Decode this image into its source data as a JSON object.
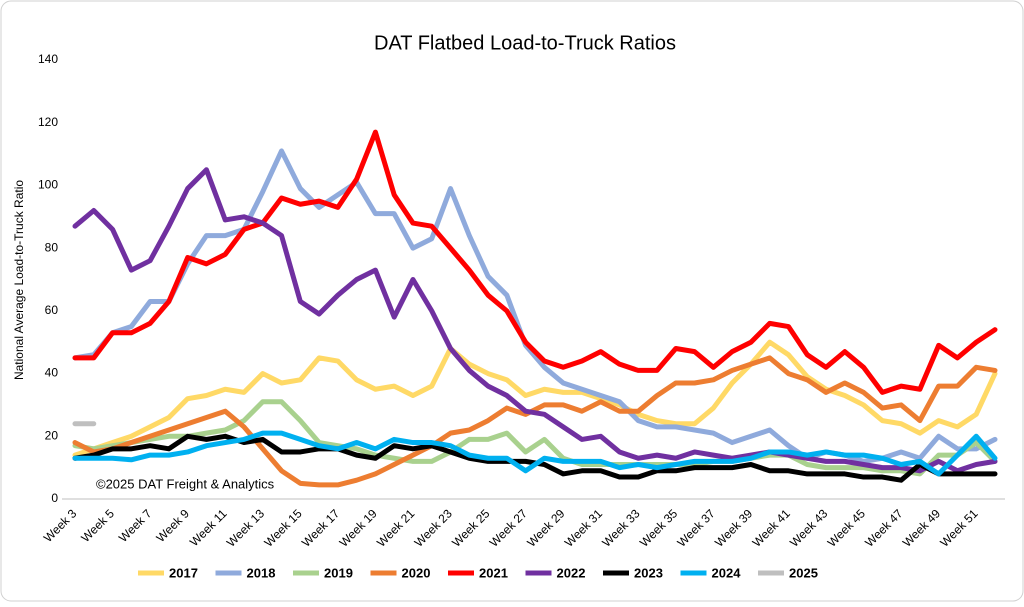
{
  "chart_data": {
    "type": "line",
    "title": "DAT Flatbed Load-to-Truck Ratios",
    "y_label": "National Average Load-to-Truck Ratio",
    "annotation": "©2025 DAT Freight & Analytics",
    "categories": [
      "Week 3",
      null,
      "Week 5",
      null,
      "Week 7",
      null,
      "Week 9",
      null,
      "Week 11",
      null,
      "Week 13",
      null,
      "Week 15",
      null,
      "Week 17",
      null,
      "Week 19",
      null,
      "Week 21",
      null,
      "Week 23",
      null,
      "Week 25",
      null,
      "Week 27",
      null,
      "Week 29",
      null,
      "Week 31",
      null,
      "Week 33",
      null,
      "Week 35",
      null,
      "Week 37",
      null,
      "Week 39",
      null,
      "Week 41",
      null,
      "Week 43",
      null,
      "Week 45",
      null,
      "Week 47",
      null,
      "Week 49",
      null,
      "Week 51",
      null
    ],
    "ylim": [
      0,
      140
    ],
    "yticks": [
      0,
      20,
      40,
      60,
      80,
      100,
      120,
      140
    ],
    "grid": false,
    "legend": "bottom",
    "series": [
      {
        "name": "2017",
        "color": "#ffd966",
        "values": [
          14,
          16,
          18,
          20,
          23,
          26,
          32,
          33,
          35,
          34,
          40,
          37,
          38,
          45,
          44,
          38,
          35,
          36,
          33,
          36,
          48,
          43,
          40,
          38,
          33,
          35,
          34,
          34,
          32,
          30,
          27,
          25,
          24,
          24,
          29,
          37,
          43,
          50,
          46,
          39,
          35,
          33,
          30,
          25,
          24,
          21,
          25,
          23,
          27,
          40
        ]
      },
      {
        "name": "2018",
        "color": "#8faadc",
        "values": [
          45,
          46,
          53,
          55,
          63,
          63,
          75,
          84,
          84,
          86,
          98,
          111,
          99,
          93,
          97,
          101,
          91,
          91,
          80,
          83,
          99,
          84,
          71,
          65,
          49,
          42,
          37,
          35,
          33,
          31,
          25,
          23,
          23,
          22,
          21,
          18,
          20,
          22,
          17,
          13,
          15,
          14,
          12,
          13,
          15,
          13,
          20,
          16,
          16,
          19
        ]
      },
      {
        "name": "2019",
        "color": "#a9d18e",
        "values": [
          17,
          16,
          17,
          18,
          19,
          20,
          20,
          21,
          22,
          25,
          31,
          31,
          25,
          18,
          17,
          16,
          14,
          13,
          12,
          12,
          15,
          19,
          19,
          21,
          15,
          19,
          13,
          11,
          11,
          11,
          11,
          11,
          11,
          11,
          12,
          12,
          13,
          14,
          14,
          11,
          10,
          10,
          10,
          9,
          9,
          8,
          14,
          14,
          18,
          12
        ]
      },
      {
        "name": "2020",
        "color": "#ed7d31",
        "values": [
          18,
          15,
          16,
          18,
          20,
          22,
          24,
          26,
          28,
          23,
          16,
          9,
          5,
          4.5,
          4.5,
          6,
          8,
          11,
          14,
          17,
          21,
          22,
          25,
          29,
          27,
          30,
          30,
          28,
          31,
          28,
          28,
          33,
          37,
          37,
          38,
          41,
          43,
          45,
          40,
          38,
          34,
          37,
          34,
          29,
          30,
          25,
          36,
          36,
          42,
          41
        ]
      },
      {
        "name": "2021",
        "color": "#ff0000",
        "values": [
          45,
          45,
          53,
          53,
          56,
          63,
          77,
          75,
          78,
          86,
          88,
          96,
          94,
          95,
          93,
          102,
          117,
          97,
          88,
          87,
          80,
          73,
          65,
          60,
          50,
          44,
          42,
          44,
          47,
          43,
          41,
          41,
          48,
          47,
          42,
          47,
          50,
          56,
          55,
          46,
          42,
          47,
          42,
          34,
          36,
          35,
          49,
          45,
          50,
          54
        ]
      },
      {
        "name": "2022",
        "color": "#7030a0",
        "values": [
          87,
          92,
          86,
          73,
          76,
          87,
          99,
          105,
          89,
          90,
          88,
          84,
          63,
          59,
          65,
          70,
          73,
          58,
          70,
          60,
          48,
          41,
          36,
          33,
          28,
          27,
          23,
          19,
          20,
          15,
          13,
          14,
          13,
          15,
          14,
          13,
          14,
          15,
          14,
          13,
          12,
          12,
          11,
          10,
          10,
          9,
          12,
          9,
          11,
          12
        ]
      },
      {
        "name": "2023",
        "color": "#000000",
        "values": [
          13,
          14,
          16,
          16,
          17,
          16,
          20,
          19,
          20,
          18,
          19,
          15,
          15,
          16,
          16,
          14,
          13,
          17,
          16,
          17,
          15,
          13,
          12,
          12,
          12,
          11,
          8,
          9,
          9,
          7,
          7,
          9,
          9,
          10,
          10,
          10,
          11,
          9,
          9,
          8,
          8,
          8,
          7,
          7,
          6,
          11,
          8,
          8,
          8,
          8
        ]
      },
      {
        "name": "2024",
        "color": "#00b0f0",
        "values": [
          13,
          13,
          13,
          12.5,
          14,
          14,
          15,
          17,
          18,
          19,
          21,
          21,
          19,
          17,
          16,
          18,
          16,
          19,
          18,
          18,
          17,
          14,
          13,
          13,
          9,
          13,
          12,
          12,
          12,
          10,
          11,
          10,
          11,
          12,
          12,
          12,
          13,
          15,
          15,
          14,
          15,
          14,
          14,
          13,
          11,
          12,
          8,
          14,
          20,
          13
        ]
      },
      {
        "name": "2025",
        "color": "#bfbfbf",
        "values": [
          24,
          24,
          null,
          null,
          null,
          null,
          null,
          null,
          null,
          null,
          null,
          null,
          null,
          null,
          null,
          null,
          null,
          null,
          null,
          null,
          null,
          null,
          null,
          null,
          null,
          null,
          null,
          null,
          null,
          null,
          null,
          null,
          null,
          null,
          null,
          null,
          null,
          null,
          null,
          null,
          null,
          null,
          null,
          null,
          null,
          null,
          null,
          null,
          null,
          null
        ]
      }
    ]
  }
}
